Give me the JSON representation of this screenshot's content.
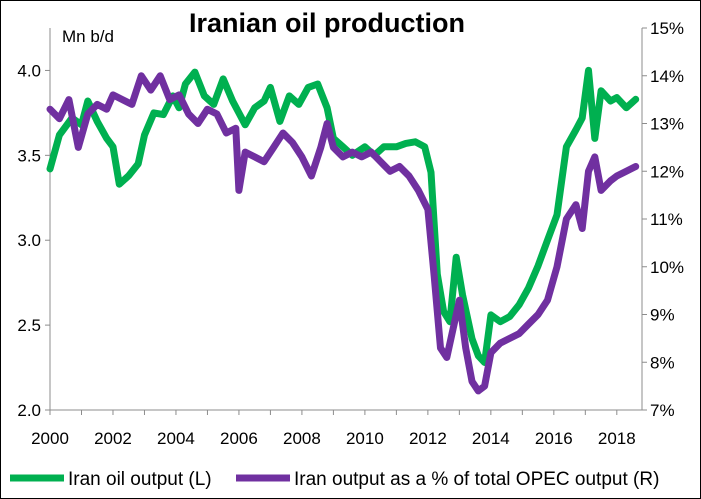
{
  "chart_data": {
    "type": "line",
    "title": "Iranian oil production",
    "left_axis_label": "Mn b/d",
    "left_ylim": [
      2.0,
      4.25
    ],
    "left_ticks": [
      "2.0",
      "2.5",
      "3.0",
      "3.5",
      "4.0"
    ],
    "right_ylim": [
      7,
      15
    ],
    "right_ticks": [
      "7%",
      "8%",
      "9%",
      "10%",
      "11%",
      "12%",
      "13%",
      "14%",
      "15%"
    ],
    "xlim": [
      2000,
      2018.8
    ],
    "x_ticks": [
      "2000",
      "2002",
      "2004",
      "2006",
      "2008",
      "2010",
      "2012",
      "2014",
      "2016",
      "2018"
    ],
    "grid": false,
    "legend_position": "bottom",
    "series": [
      {
        "name": "Iran oil output (L)",
        "axis": "left",
        "color": "#00b050",
        "x": [
          2000.0,
          2000.3,
          2000.7,
          2001.0,
          2001.2,
          2001.5,
          2001.8,
          2002.0,
          2002.2,
          2002.5,
          2002.8,
          2003.0,
          2003.3,
          2003.6,
          2003.9,
          2004.1,
          2004.3,
          2004.6,
          2004.9,
          2005.2,
          2005.5,
          2005.8,
          2006.0,
          2006.2,
          2006.5,
          2006.8,
          2007.0,
          2007.3,
          2007.6,
          2007.9,
          2008.2,
          2008.5,
          2008.8,
          2009.0,
          2009.3,
          2009.6,
          2010.0,
          2010.3,
          2010.6,
          2011.0,
          2011.3,
          2011.6,
          2011.9,
          2012.1,
          2012.3,
          2012.5,
          2012.7,
          2012.9,
          2013.1,
          2013.4,
          2013.6,
          2013.8,
          2014.0,
          2014.3,
          2014.6,
          2014.9,
          2015.2,
          2015.5,
          2015.8,
          2016.1,
          2016.4,
          2016.7,
          2016.9,
          2017.1,
          2017.3,
          2017.5,
          2017.8,
          2018.0,
          2018.3,
          2018.6
        ],
        "values": [
          3.42,
          3.62,
          3.72,
          3.68,
          3.82,
          3.7,
          3.6,
          3.55,
          3.33,
          3.38,
          3.45,
          3.62,
          3.75,
          3.74,
          3.85,
          3.78,
          3.92,
          3.99,
          3.85,
          3.8,
          3.95,
          3.82,
          3.75,
          3.68,
          3.78,
          3.82,
          3.9,
          3.7,
          3.85,
          3.8,
          3.9,
          3.92,
          3.78,
          3.6,
          3.55,
          3.5,
          3.55,
          3.5,
          3.55,
          3.55,
          3.57,
          3.58,
          3.55,
          3.4,
          2.8,
          2.58,
          2.52,
          2.9,
          2.68,
          2.42,
          2.32,
          2.28,
          2.56,
          2.52,
          2.55,
          2.62,
          2.72,
          2.85,
          3.0,
          3.15,
          3.55,
          3.65,
          3.72,
          4.0,
          3.6,
          3.88,
          3.82,
          3.84,
          3.78,
          3.83
        ]
      },
      {
        "name": "Iran output as a % of total OPEC output (R)",
        "axis": "right",
        "color": "#7030a0",
        "x": [
          2000.0,
          2000.3,
          2000.6,
          2000.9,
          2001.2,
          2001.5,
          2001.8,
          2002.0,
          2002.3,
          2002.6,
          2002.9,
          2003.2,
          2003.5,
          2003.8,
          2004.1,
          2004.4,
          2004.7,
          2005.0,
          2005.3,
          2005.6,
          2005.9,
          2006.0,
          2006.2,
          2006.5,
          2006.8,
          2007.1,
          2007.4,
          2007.7,
          2008.0,
          2008.3,
          2008.6,
          2008.8,
          2009.0,
          2009.3,
          2009.6,
          2009.9,
          2010.2,
          2010.5,
          2010.8,
          2011.1,
          2011.4,
          2011.7,
          2012.0,
          2012.2,
          2012.4,
          2012.6,
          2012.8,
          2013.0,
          2013.2,
          2013.4,
          2013.6,
          2013.8,
          2014.0,
          2014.3,
          2014.6,
          2014.9,
          2015.2,
          2015.5,
          2015.8,
          2016.1,
          2016.4,
          2016.7,
          2016.9,
          2017.1,
          2017.3,
          2017.5,
          2017.8,
          2018.0,
          2018.3,
          2018.6
        ],
        "values": [
          13.3,
          13.1,
          13.5,
          12.5,
          13.2,
          13.4,
          13.3,
          13.6,
          13.5,
          13.4,
          14.0,
          13.7,
          14.0,
          13.5,
          13.6,
          13.2,
          13.0,
          13.3,
          13.2,
          12.8,
          12.9,
          11.6,
          12.4,
          12.3,
          12.2,
          12.5,
          12.8,
          12.6,
          12.3,
          11.9,
          12.5,
          13.0,
          12.5,
          12.3,
          12.4,
          12.3,
          12.4,
          12.2,
          12.0,
          12.1,
          11.9,
          11.6,
          11.2,
          9.8,
          8.3,
          8.1,
          8.7,
          9.3,
          8.3,
          7.6,
          7.4,
          7.5,
          8.2,
          8.4,
          8.5,
          8.6,
          8.8,
          9.0,
          9.3,
          10.0,
          11.0,
          11.3,
          10.8,
          12.0,
          12.3,
          11.6,
          11.8,
          11.9,
          12.0,
          12.1
        ]
      }
    ]
  }
}
